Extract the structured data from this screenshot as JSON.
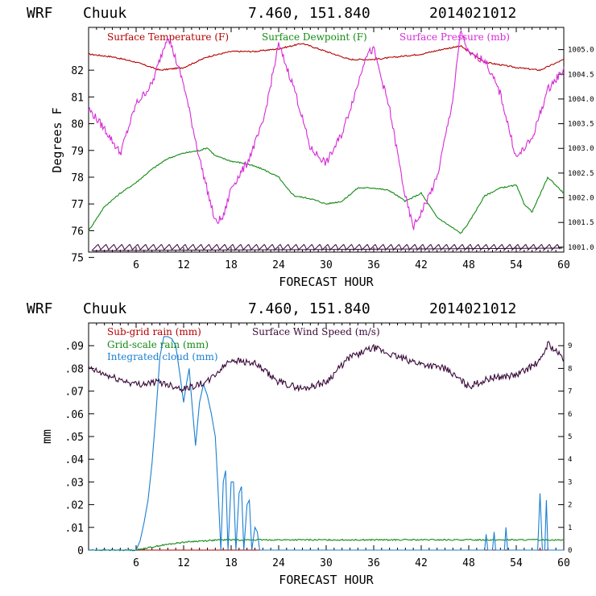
{
  "chart_data": [
    {
      "type": "line",
      "header": {
        "model": "WRF",
        "station": "Chuuk",
        "coords": "7.460, 151.840",
        "init": "2014021012"
      },
      "xlabel": "FORECAST HOUR",
      "ylabel": "Degrees F",
      "xlim": [
        0,
        60
      ],
      "xticks": [
        "6",
        "12",
        "18",
        "24",
        "30",
        "36",
        "42",
        "48",
        "54",
        "60"
      ],
      "ylim": [
        75.2,
        83.6
      ],
      "yticks": [
        "75",
        "76",
        "77",
        "78",
        "79",
        "80",
        "81",
        "82"
      ],
      "y2lim": [
        1000.9,
        1005.45
      ],
      "y2ticks": [
        "1001.0",
        "1001.5",
        "1002.0",
        "1002.5",
        "1003.0",
        "1003.5",
        "1004.0",
        "1004.5",
        "1005.0"
      ],
      "legend_position": "top",
      "grid": false,
      "series": [
        {
          "name": "Surface Temperature (F)",
          "color": "#b30000",
          "axis": "left",
          "x": [
            0,
            3,
            6,
            9,
            12,
            15,
            18,
            21,
            24,
            27,
            30,
            33,
            36,
            39,
            42,
            45,
            47,
            50,
            54,
            57,
            60
          ],
          "values": [
            82.6,
            82.5,
            82.3,
            82.0,
            82.1,
            82.5,
            82.7,
            82.7,
            82.8,
            83.0,
            82.7,
            82.4,
            82.4,
            82.5,
            82.6,
            82.8,
            82.9,
            82.3,
            82.1,
            82.0,
            82.4
          ]
        },
        {
          "name": "Surface Dewpoint (F)",
          "color": "#138a13",
          "axis": "left",
          "x": [
            0,
            2,
            4,
            6,
            8,
            10,
            12,
            14,
            15,
            16,
            18,
            20,
            22,
            24,
            25,
            26,
            28,
            30,
            32,
            34,
            36,
            38,
            40,
            42,
            44,
            46,
            47,
            48,
            50,
            52,
            54,
            55,
            56,
            58,
            60
          ],
          "values": [
            76.0,
            76.9,
            77.4,
            77.8,
            78.3,
            78.7,
            78.9,
            79.0,
            79.1,
            78.8,
            78.6,
            78.5,
            78.3,
            78.0,
            77.6,
            77.3,
            77.2,
            77.0,
            77.1,
            77.6,
            77.6,
            77.5,
            77.1,
            77.4,
            76.5,
            76.1,
            75.9,
            76.3,
            77.3,
            77.6,
            77.7,
            77.0,
            76.7,
            78.0,
            77.4
          ]
        },
        {
          "name": "Surface Pressure (mb)",
          "color": "#d62ad6",
          "axis": "right",
          "x": [
            0,
            2,
            4,
            6,
            8,
            10,
            12,
            14,
            16,
            17,
            18,
            20,
            22,
            24,
            26,
            28,
            30,
            32,
            34,
            35,
            36,
            38,
            40,
            41,
            42,
            44,
            46,
            47,
            48,
            50,
            52,
            54,
            56,
            58,
            60
          ],
          "values": [
            1003.8,
            1003.4,
            1002.9,
            1003.9,
            1004.3,
            1005.3,
            1004.3,
            1002.8,
            1001.5,
            1001.6,
            1002.2,
            1002.7,
            1003.5,
            1005.1,
            1004.2,
            1003.0,
            1002.7,
            1003.3,
            1004.3,
            1004.9,
            1005.0,
            1003.8,
            1002.0,
            1001.4,
            1001.7,
            1002.4,
            1004.0,
            1005.4,
            1004.9,
            1004.8,
            1004.1,
            1002.8,
            1003.2,
            1004.2,
            1004.6
          ]
        }
      ],
      "wind_barbs": "row of wind barbs along the bottom of the panel (hours 0-60)"
    },
    {
      "type": "line",
      "header": {
        "model": "WRF",
        "station": "Chuuk",
        "coords": "7.460, 151.840",
        "init": "2014021012"
      },
      "xlabel": "FORECAST HOUR",
      "ylabel": "mm",
      "xlim": [
        0,
        60
      ],
      "xticks": [
        "6",
        "12",
        "18",
        "24",
        "30",
        "36",
        "42",
        "48",
        "54",
        "60"
      ],
      "ylim": [
        0,
        0.1
      ],
      "yticks": [
        "0",
        ".01",
        ".02",
        ".03",
        ".04",
        ".05",
        ".06",
        ".07",
        ".08",
        ".09"
      ],
      "y2lim": [
        0,
        10
      ],
      "y2ticks": [
        "0",
        "1",
        "2",
        "3",
        "4",
        "5",
        "6",
        "7",
        "8",
        "9"
      ],
      "legend_position": "top-left",
      "grid": false,
      "series": [
        {
          "name": "Sub-grid rain (mm)",
          "color": "#b30000",
          "axis": "left",
          "x": [
            0,
            60
          ],
          "values": [
            0,
            0
          ]
        },
        {
          "name": "Grid-scale rain (mm)",
          "color": "#138a13",
          "axis": "left",
          "x": [
            0,
            6,
            9,
            12,
            15,
            17,
            60
          ],
          "values": [
            0,
            0,
            0.002,
            0.0035,
            0.0042,
            0.0045,
            0.0045
          ]
        },
        {
          "name": "Integrated cloud (mm)",
          "color": "#1a7fd1",
          "axis": "left",
          "x": [
            0,
            6,
            6.5,
            7,
            7.5,
            8,
            8.5,
            9,
            9.5,
            10,
            10.5,
            11,
            11.5,
            12,
            12.3,
            12.7,
            13,
            13.5,
            14,
            14.5,
            15,
            15.5,
            16,
            16.3,
            16.7,
            17,
            17.3,
            17.6,
            18,
            18.3,
            18.6,
            19,
            19.3,
            19.6,
            20,
            20.3,
            20.6,
            21,
            21.3,
            21.6,
            50,
            50.2,
            50.4,
            51,
            51.2,
            51.4,
            52.5,
            52.7,
            52.9,
            56.7,
            57,
            57.3,
            57.6,
            57.8,
            58,
            60
          ],
          "values": [
            0,
            0,
            0.004,
            0.012,
            0.022,
            0.038,
            0.06,
            0.085,
            0.094,
            0.094,
            0.093,
            0.09,
            0.078,
            0.065,
            0.072,
            0.08,
            0.067,
            0.046,
            0.065,
            0.073,
            0.068,
            0.06,
            0.05,
            0.03,
            0.0,
            0.03,
            0.035,
            0.0,
            0.03,
            0.03,
            0.0,
            0.025,
            0.028,
            0.0,
            0.02,
            0.022,
            0.0,
            0.01,
            0.008,
            0.0,
            0.0,
            0.007,
            0.0,
            0.0,
            0.008,
            0.0,
            0.0,
            0.01,
            0.0,
            0.0,
            0.025,
            0.0,
            0.0,
            0.022,
            0.0,
            0.0
          ]
        },
        {
          "name": "Surface Wind Speed (m/s)",
          "color": "#3a0a3a",
          "axis": "right",
          "x": [
            0,
            3,
            6,
            9,
            12,
            15,
            18,
            21,
            24,
            27,
            30,
            33,
            36,
            39,
            42,
            45,
            48,
            51,
            54,
            57,
            58,
            60
          ],
          "values": [
            8.0,
            7.6,
            7.3,
            7.4,
            7.1,
            7.4,
            8.4,
            8.2,
            7.4,
            7.1,
            7.4,
            8.5,
            8.9,
            8.5,
            8.2,
            8.0,
            7.2,
            7.6,
            7.7,
            8.3,
            9.1,
            8.4
          ]
        }
      ]
    }
  ]
}
